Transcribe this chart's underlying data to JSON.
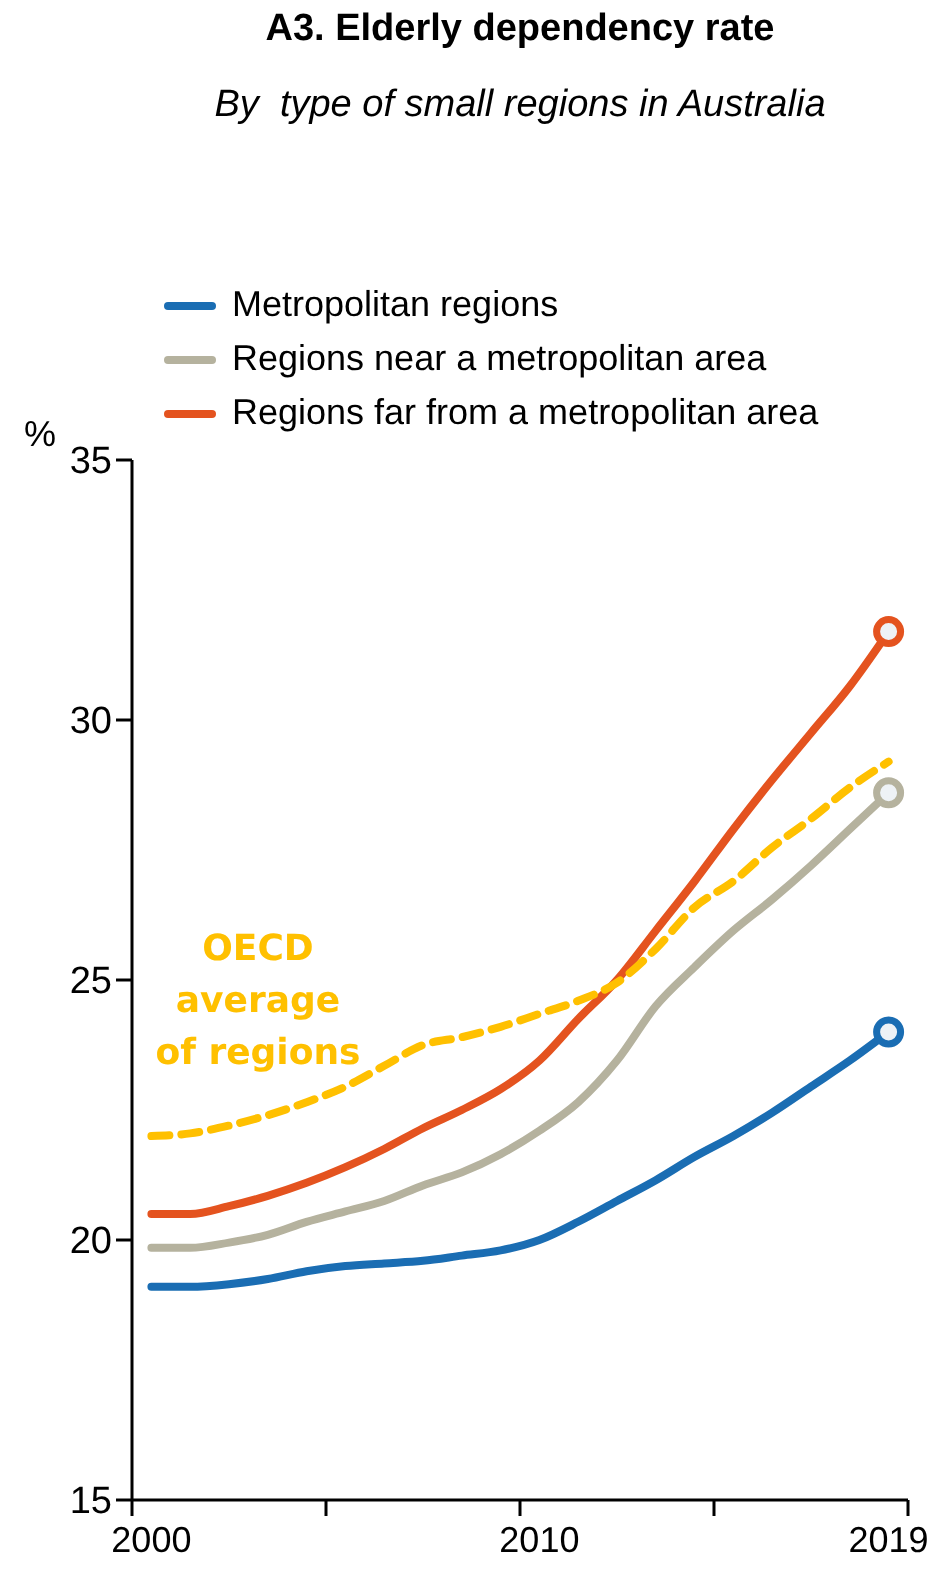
{
  "chart_data": {
    "type": "line",
    "title": "A3. Elderly dependency rate",
    "subtitle": "By  type of small regions in Australia",
    "ylabel": "%",
    "x": [
      2000,
      2001,
      2002,
      2003,
      2004,
      2005,
      2006,
      2007,
      2008,
      2009,
      2010,
      2011,
      2012,
      2013,
      2014,
      2015,
      2016,
      2017,
      2018,
      2019
    ],
    "series": [
      {
        "name": "Metropolitan regions",
        "color": "#1a6db3",
        "values": [
          19.1,
          19.1,
          19.15,
          19.25,
          19.4,
          19.5,
          19.55,
          19.6,
          19.7,
          19.8,
          20.0,
          20.35,
          20.75,
          21.15,
          21.6,
          22.0,
          22.45,
          22.95,
          23.45,
          24.0
        ]
      },
      {
        "name": "Regions near a metropolitan area",
        "color": "#b5b29e",
        "values": [
          19.85,
          19.85,
          19.95,
          20.1,
          20.35,
          20.55,
          20.75,
          21.05,
          21.3,
          21.65,
          22.1,
          22.65,
          23.45,
          24.5,
          25.25,
          25.95,
          26.55,
          27.2,
          27.9,
          28.6
        ]
      },
      {
        "name": "Regions far from a metropolitan area",
        "color": "#e4531f",
        "values": [
          20.5,
          20.5,
          20.65,
          20.85,
          21.1,
          21.4,
          21.75,
          22.15,
          22.5,
          22.9,
          23.45,
          24.25,
          25.0,
          25.95,
          26.9,
          27.9,
          28.85,
          29.75,
          30.65,
          31.7
        ]
      },
      {
        "color": "#ffc000",
        "line_style": "dashed",
        "values": [
          22.0,
          22.05,
          22.2,
          22.4,
          22.65,
          22.95,
          23.35,
          23.75,
          23.9,
          24.1,
          24.35,
          24.6,
          24.95,
          25.6,
          26.4,
          26.9,
          27.55,
          28.1,
          28.7,
          29.2
        ]
      },
      {
        "type": "scatter",
        "color": "#1a6db3",
        "marker": "circle",
        "values": [
          null,
          null,
          null,
          null,
          null,
          null,
          null,
          null,
          null,
          null,
          null,
          null,
          null,
          null,
          null,
          null,
          null,
          null,
          null,
          24.0
        ]
      },
      {
        "type": "scatter",
        "color": "#b5b29e",
        "marker": "circle",
        "values": [
          null,
          null,
          null,
          null,
          null,
          null,
          null,
          null,
          null,
          null,
          null,
          null,
          null,
          null,
          null,
          null,
          null,
          null,
          null,
          28.6
        ]
      },
      {
        "type": "scatter",
        "color": "#e4531f",
        "marker": "circle",
        "values": [
          null,
          null,
          null,
          null,
          null,
          null,
          null,
          null,
          null,
          null,
          null,
          null,
          null,
          null,
          null,
          null,
          null,
          null,
          null,
          31.7
        ]
      }
    ],
    "annotations": [
      "OECD average of regions"
    ],
    "xlim": [
      1999.5,
      2019.5
    ],
    "xticks": [
      {
        "value": 1999.5,
        "label": null
      },
      {
        "value": 2000,
        "label": "2000"
      },
      {
        "value": 2004.5,
        "label": null
      },
      {
        "value": 2009.5,
        "label": null
      },
      {
        "value": 2010,
        "label": "2010"
      },
      {
        "value": 2014.5,
        "label": null
      },
      {
        "value": 2019,
        "label": "2019"
      },
      {
        "value": 2019.5,
        "label": null
      }
    ],
    "ylim": [
      15,
      35
    ],
    "yticks": [
      15,
      20,
      25,
      30,
      35
    ],
    "grid": false,
    "legend": "top left"
  }
}
